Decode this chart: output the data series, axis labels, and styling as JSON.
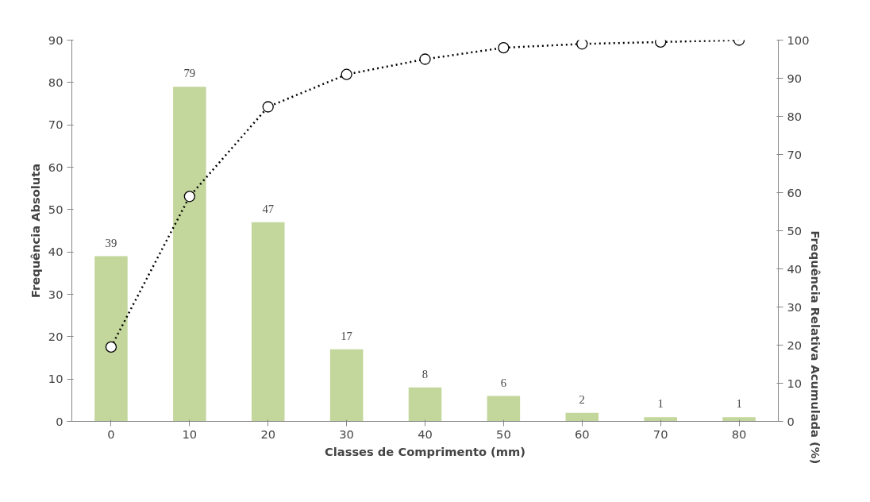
{
  "chart_data": {
    "type": "bar",
    "categories": [
      "0",
      "10",
      "20",
      "30",
      "40",
      "50",
      "60",
      "70",
      "80"
    ],
    "xlabel": "Classes de Comprimento (mm)",
    "ylabel": "Frequência Absoluta",
    "y2label": "Frequência Relativa Acumulada (%)",
    "ylim": [
      0,
      90
    ],
    "yticks": [
      0,
      10,
      20,
      30,
      40,
      50,
      60,
      70,
      80,
      90
    ],
    "y2lim": [
      0,
      100
    ],
    "y2ticks": [
      0,
      10,
      20,
      30,
      40,
      50,
      60,
      70,
      80,
      90,
      100
    ],
    "grid": false,
    "series": [
      {
        "color": "#c3d69b",
        "values": [
          39,
          79,
          47,
          17,
          8,
          6,
          2,
          1,
          1
        ],
        "value_labels": [
          "39",
          "79",
          "47",
          "17",
          "8",
          "6",
          "2",
          "1",
          "1"
        ]
      },
      {
        "type": "line",
        "axis": "y2",
        "color": "#000000",
        "marker": "circle",
        "line_style": "dotted",
        "values": [
          19.5,
          59,
          82.5,
          91,
          95,
          98,
          99,
          99.5,
          100
        ]
      }
    ]
  }
}
